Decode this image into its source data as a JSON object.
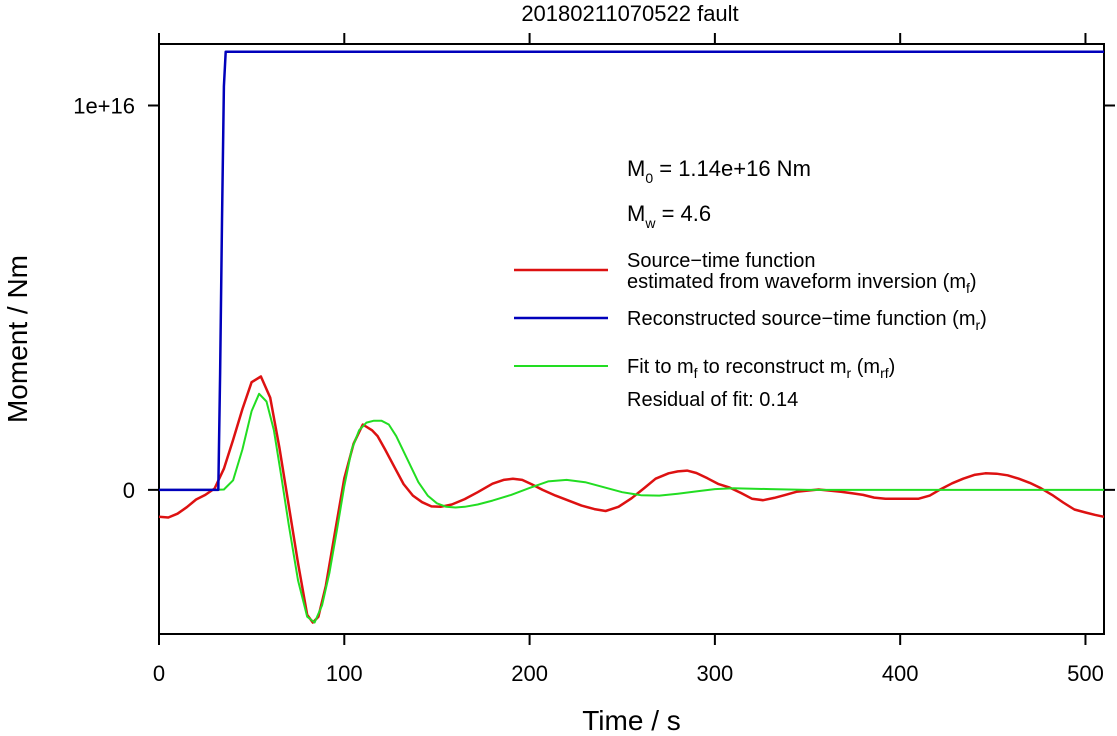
{
  "chart_data": {
    "type": "line",
    "title": "20180211070522 fault",
    "xlabel": "Time / s",
    "ylabel": "Moment / Nm",
    "xlim": [
      0,
      510
    ],
    "ylim": [
      -3750000000000000.0,
      1.16e+16
    ],
    "x_ticks": [
      0,
      100,
      200,
      300,
      400,
      500
    ],
    "x_tick_labels": [
      "0",
      "100",
      "200",
      "300",
      "400",
      "500"
    ],
    "y_ticks": [
      0,
      1e+16
    ],
    "y_tick_labels": [
      "0",
      "1e+16"
    ],
    "grid": false,
    "legend_position": "right",
    "annotations": {
      "m0": {
        "main": "M",
        "sub": "0",
        "rest": " = 1.14e+16 Nm"
      },
      "mw": {
        "main": "M",
        "sub": "w",
        "rest": " = 4.6"
      },
      "residual": "Residual of fit: 0.14"
    },
    "legend": [
      {
        "line1": "Source−time function",
        "line2": "estimated from waveform inversion (m",
        "line2_sub": "f",
        "line2_end": ")",
        "color": "#dd1111"
      },
      {
        "text": "Reconstructed source−time function (m",
        "sub": "r",
        "end": ")",
        "color": "#0000bb"
      },
      {
        "text": "Fit to m",
        "sub": "f",
        "mid": " to reconstruct m",
        "sub2": "r",
        "mid2": " (m",
        "sub3": "rf",
        "end": ")",
        "color": "#22dd22"
      }
    ],
    "series": [
      {
        "name": "m_f",
        "color": "#dd1111",
        "x": [
          0,
          5,
          10,
          15,
          20,
          25,
          30,
          35,
          40,
          45,
          50,
          55,
          60,
          65,
          70,
          75,
          80,
          83,
          86,
          90,
          95,
          100,
          105,
          110,
          115,
          118,
          122,
          127,
          132,
          137,
          142,
          147,
          152,
          158,
          165,
          172,
          180,
          186,
          191,
          196,
          201,
          207,
          214,
          221,
          228,
          235,
          241,
          248,
          255,
          262,
          268,
          275,
          280,
          285,
          290,
          296,
          302,
          308,
          314,
          320,
          326,
          332,
          338,
          344,
          350,
          356,
          362,
          368,
          374,
          380,
          386,
          392,
          398,
          404,
          410,
          416,
          422,
          428,
          434,
          440,
          446,
          452,
          458,
          464,
          470,
          476,
          482,
          488,
          494,
          500,
          505,
          510
        ],
        "y": [
          -700000000000000.0,
          -720000000000000.0,
          -620000000000000.0,
          -450000000000000.0,
          -250000000000000.0,
          -130000000000000.0,
          35000000000000.0,
          550000000000000.0,
          1300000000000000.0,
          2100000000000000.0,
          2800000000000000.0,
          2950000000000000.0,
          2400000000000000.0,
          1100000000000000.0,
          -400000000000000.0,
          -1900000000000000.0,
          -3250000000000000.0,
          -3450000000000000.0,
          -3300000000000000.0,
          -2500000000000000.0,
          -1100000000000000.0,
          300000000000000.0,
          1200000000000000.0,
          1700000000000000.0,
          1550000000000000.0,
          1400000000000000.0,
          1050000000000000.0,
          600000000000000.0,
          150000000000000.0,
          -150000000000000.0,
          -320000000000000.0,
          -430000000000000.0,
          -440000000000000.0,
          -380000000000000.0,
          -240000000000000.0,
          -60000000000000.0,
          160000000000000.0,
          260000000000000.0,
          290000000000000.0,
          260000000000000.0,
          150000000000000.0,
          0,
          -150000000000000.0,
          -280000000000000.0,
          -410000000000000.0,
          -500000000000000.0,
          -550000000000000.0,
          -440000000000000.0,
          -220000000000000.0,
          50000000000000.0,
          290000000000000.0,
          430000000000000.0,
          480000000000000.0,
          500000000000000.0,
          440000000000000.0,
          300000000000000.0,
          150000000000000.0,
          60000000000000.0,
          -80000000000000.0,
          -230000000000000.0,
          -270000000000000.0,
          -210000000000000.0,
          -130000000000000.0,
          -50000000000000.0,
          -20000000000000.0,
          10000000000000.0,
          -20000000000000.0,
          -50000000000000.0,
          -90000000000000.0,
          -130000000000000.0,
          -200000000000000.0,
          -230000000000000.0,
          -230000000000000.0,
          -230000000000000.0,
          -230000000000000.0,
          -150000000000000.0,
          20000000000000.0,
          170000000000000.0,
          290000000000000.0,
          390000000000000.0,
          430000000000000.0,
          420000000000000.0,
          380000000000000.0,
          290000000000000.0,
          180000000000000.0,
          40000000000000.0,
          -130000000000000.0,
          -330000000000000.0,
          -510000000000000.0,
          -590000000000000.0,
          -650000000000000.0,
          -700000000000000.0
        ]
      },
      {
        "name": "m_r",
        "color": "#0000bb",
        "x": [
          0,
          32,
          33,
          34,
          35,
          36,
          37,
          510
        ],
        "y": [
          0,
          0,
          3000000000000000.0,
          7000000000000000.0,
          1.05e+16,
          1.14e+16,
          1.14e+16,
          1.14e+16
        ]
      },
      {
        "name": "m_rf",
        "color": "#22dd22",
        "x": [
          0,
          30,
          35,
          40,
          45,
          50,
          54,
          58,
          62,
          66,
          70,
          75,
          80,
          84,
          88,
          92,
          96,
          100,
          104,
          108,
          112,
          116,
          120,
          124,
          128,
          132,
          136,
          140,
          145,
          150,
          155,
          160,
          165,
          172,
          180,
          190,
          200,
          210,
          220,
          230,
          240,
          250,
          260,
          270,
          280,
          290,
          300,
          310,
          330,
          350,
          380,
          420,
          460,
          510
        ],
        "y": [
          0,
          0,
          10000000000000.0,
          250000000000000.0,
          1050000000000000.0,
          2050000000000000.0,
          2500000000000000.0,
          2300000000000000.0,
          1550000000000000.0,
          350000000000000.0,
          -900000000000000.0,
          -2350000000000000.0,
          -3300000000000000.0,
          -3450000000000000.0,
          -3000000000000000.0,
          -2150000000000000.0,
          -1050000000000000.0,
          100000000000000.0,
          1050000000000000.0,
          1550000000000000.0,
          1750000000000000.0,
          1800000000000000.0,
          1800000000000000.0,
          1700000000000000.0,
          1400000000000000.0,
          1000000000000000.0,
          600000000000000.0,
          200000000000000.0,
          -150000000000000.0,
          -350000000000000.0,
          -440000000000000.0,
          -460000000000000.0,
          -440000000000000.0,
          -380000000000000.0,
          -280000000000000.0,
          -130000000000000.0,
          50000000000000.0,
          220000000000000.0,
          260000000000000.0,
          200000000000000.0,
          70000000000000.0,
          -60000000000000.0,
          -140000000000000.0,
          -150000000000000.0,
          -100000000000000.0,
          -40000000000000.0,
          20000000000000.0,
          40000000000000.0,
          20000000000000.0,
          0,
          0,
          0,
          0,
          0
        ]
      }
    ]
  }
}
